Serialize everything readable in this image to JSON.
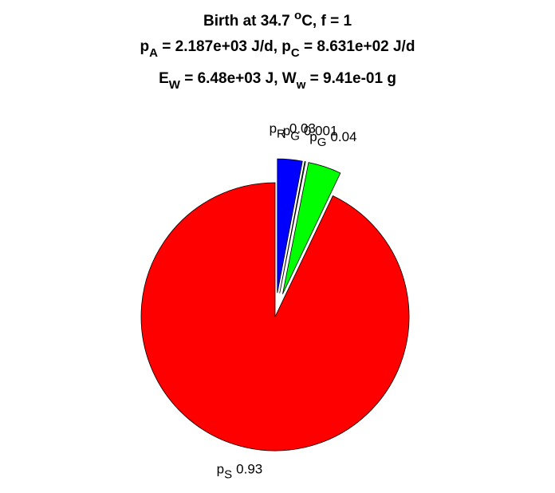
{
  "chart_data": {
    "type": "pie",
    "title": [
      [
        {
          "t": "Birth at 34.7 "
        },
        {
          "t": "o",
          "pos": "sup"
        },
        {
          "t": "C, f = 1"
        }
      ],
      [
        {
          "t": "p"
        },
        {
          "t": "A",
          "pos": "sub"
        },
        {
          "t": " = 2.187e+03 J/d, p"
        },
        {
          "t": "C",
          "pos": "sub"
        },
        {
          "t": " = 8.631e+02 J/d"
        }
      ],
      [
        {
          "t": "E"
        },
        {
          "t": "W",
          "pos": "sub"
        },
        {
          "t": " = 6.48e+03 J, W"
        },
        {
          "t": "w",
          "pos": "sub"
        },
        {
          "t": " = 9.41e-01 g"
        }
      ]
    ],
    "categories": [
      "p",
      "p",
      "p",
      "p"
    ],
    "subscripts": [
      "R",
      "G",
      "G",
      "S"
    ],
    "values": [
      0.03,
      0.001,
      0.04,
      0.93
    ],
    "value_labels": [
      "0.03",
      "0.001",
      "0.04",
      "0.93"
    ],
    "colors": [
      "#0000ff",
      "#00ff00",
      "#00ff00",
      "#ff0000"
    ],
    "explode": [
      true,
      true,
      true,
      false
    ]
  }
}
